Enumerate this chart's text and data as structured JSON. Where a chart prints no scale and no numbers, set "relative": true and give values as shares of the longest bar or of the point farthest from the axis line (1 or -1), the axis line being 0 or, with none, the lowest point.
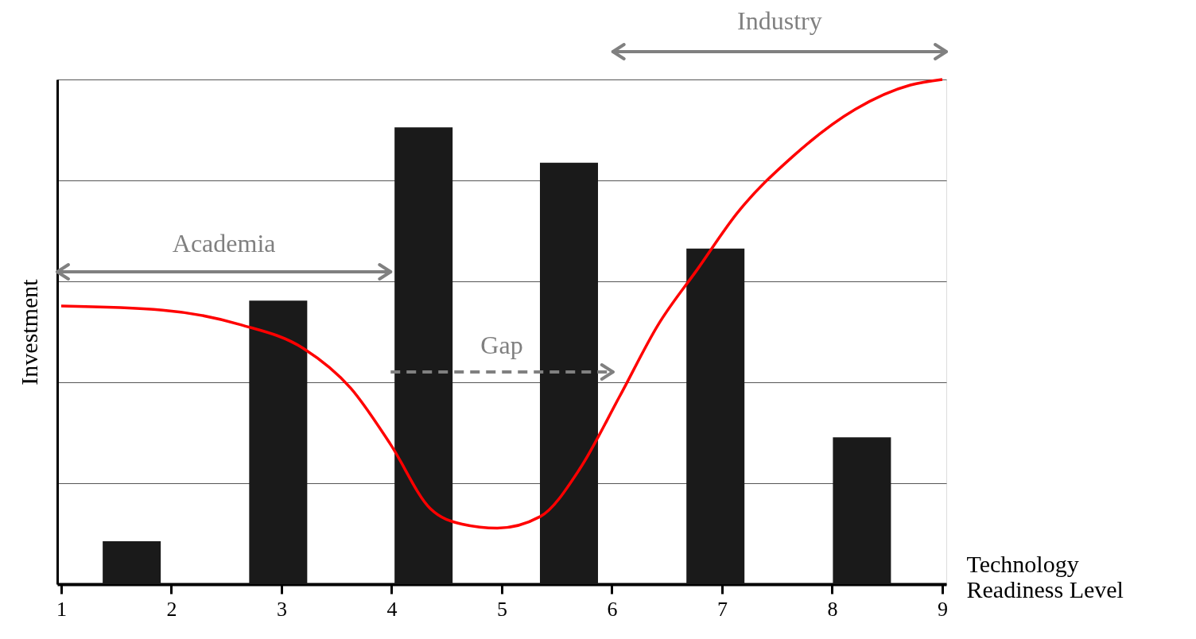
{
  "chart_data": {
    "type": "bar",
    "relative": true,
    "xlabel": "Technology Readiness Level",
    "ylabel": "Investment",
    "xlim": [
      1,
      9
    ],
    "xticks": [
      1,
      2,
      3,
      4,
      5,
      6,
      7,
      8,
      9
    ],
    "grid": "y",
    "series": [
      {
        "color": "#1a1a1a",
        "x": [
          1.64,
          2.97,
          4.29,
          5.61,
          6.94,
          8.27
        ],
        "values": [
          0.085,
          0.562,
          0.905,
          0.835,
          0.665,
          0.291
        ]
      },
      {
        "type": "line",
        "color": "#ff0000",
        "x": [
          1.0,
          1.92,
          2.63,
          3.2,
          3.63,
          3.99,
          4.35,
          4.64,
          4.96,
          5.35,
          5.71,
          6.07,
          6.42,
          6.78,
          7.14,
          7.64,
          8.21,
          8.71,
          9.0
        ],
        "values": [
          0.551,
          0.543,
          0.514,
          0.467,
          0.388,
          0.277,
          0.15,
          0.119,
          0.111,
          0.134,
          0.229,
          0.372,
          0.514,
          0.625,
          0.736,
          0.847,
          0.941,
          0.989,
          1.0
        ]
      }
    ],
    "annotations": [
      "Academia",
      "Gap",
      "Industry"
    ]
  }
}
